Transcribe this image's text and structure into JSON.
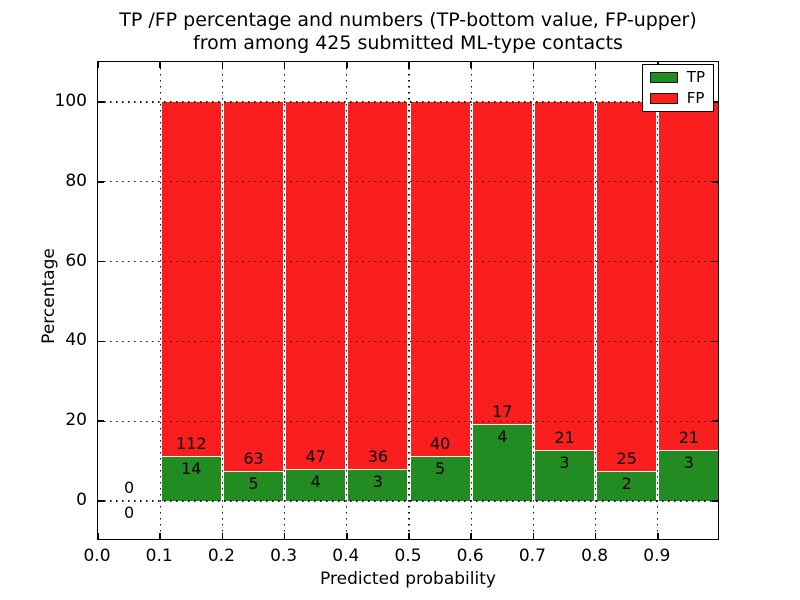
{
  "title": {
    "line1": "TP /FP percentage and numbers (TP-bottom value, FP-upper)",
    "line2": "from among 425 submitted ML-type contacts"
  },
  "axes": {
    "xlabel": "Predicted probability",
    "ylabel": "Percentage",
    "xtick_labels": [
      "0.0",
      "0.1",
      "0.2",
      "0.3",
      "0.4",
      "0.5",
      "0.6",
      "0.7",
      "0.8",
      "0.9"
    ],
    "ytick_labels": [
      "0",
      "20",
      "40",
      "60",
      "80",
      "100"
    ]
  },
  "legend": {
    "items": [
      {
        "label": "TP",
        "color": "#228b22"
      },
      {
        "label": "FP",
        "color": "#fa1e1e"
      }
    ]
  },
  "colors": {
    "tp": "#228b22",
    "fp": "#fa1e1e",
    "grid": "#111111",
    "text": "#000000",
    "background": "#ffffff"
  },
  "chart_data": {
    "type": "bar",
    "subtype": "stacked-100-percent-histogram",
    "title": "TP /FP percentage and numbers (TP-bottom value, FP-upper) from among 425 submitted ML-type contacts",
    "xlabel": "Predicted probability",
    "ylabel": "Percentage",
    "xlim": [
      0.0,
      1.0
    ],
    "ylim": [
      -10,
      110
    ],
    "xticks": [
      0.0,
      0.1,
      0.2,
      0.3,
      0.4,
      0.5,
      0.6,
      0.7,
      0.8,
      0.9
    ],
    "yticks": [
      0,
      20,
      40,
      60,
      80,
      100
    ],
    "grid": "dotted, both axes, drawn above bars",
    "legend_position": "upper right",
    "total_contacts": 425,
    "bin_width": 0.1,
    "bin_starts": [
      0.0,
      0.1,
      0.2,
      0.3,
      0.4,
      0.5,
      0.6,
      0.7,
      0.8,
      0.9
    ],
    "series": [
      {
        "name": "TP",
        "color": "#228b22",
        "counts": [
          0,
          14,
          5,
          4,
          3,
          5,
          4,
          3,
          2,
          3
        ]
      },
      {
        "name": "FP",
        "color": "#fa1e1e",
        "counts": [
          0,
          112,
          63,
          47,
          36,
          40,
          17,
          21,
          25,
          21
        ]
      }
    ],
    "bar_value_labels": "FP count printed above green segment top, TP count printed below green segment top; empty first bin shows 0 and 0 around the baseline",
    "tp_percent_of_bin": [
      null,
      11.11,
      7.35,
      7.84,
      7.69,
      11.11,
      19.05,
      12.5,
      7.41,
      12.5
    ]
  }
}
